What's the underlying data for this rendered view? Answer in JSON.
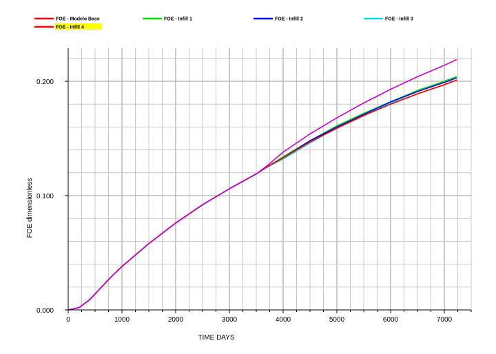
{
  "chart_data": {
    "type": "line",
    "title": "",
    "xlabel": "TIME  DAYS",
    "ylabel": "FOE  dimensionless",
    "xlim": [
      0,
      7500
    ],
    "ylim": [
      0,
      0.2
    ],
    "xticks": [
      0,
      1000,
      2000,
      3000,
      4000,
      5000,
      6000,
      7000
    ],
    "xtick_labels": [
      "0",
      "1000",
      "2000",
      "3000",
      "4000",
      "5000",
      "6000",
      "7000"
    ],
    "yticks": [
      0,
      0.1,
      0.2
    ],
    "ytick_labels": [
      "0.000",
      "0.100",
      "0.200"
    ],
    "grid": true,
    "legend_position": "top",
    "series": [
      {
        "name": "FOE - Modelo Base",
        "color": "#ff0000",
        "x": [
          0,
          200,
          400,
          600,
          800,
          1000,
          1500,
          2000,
          2500,
          3000,
          3500,
          3700,
          4000,
          4500,
          5000,
          5500,
          6000,
          6500,
          7000,
          7230
        ],
        "y": [
          0.0,
          0.002,
          0.009,
          0.019,
          0.029,
          0.038,
          0.058,
          0.076,
          0.092,
          0.106,
          0.119,
          0.125,
          0.133,
          0.147,
          0.159,
          0.17,
          0.18,
          0.189,
          0.197,
          0.201
        ]
      },
      {
        "name": "FOE - Infill 1",
        "color": "#00e000",
        "x": [
          0,
          200,
          400,
          600,
          800,
          1000,
          1500,
          2000,
          2500,
          3000,
          3500,
          3700,
          4000,
          4500,
          5000,
          5500,
          6000,
          6500,
          7000,
          7230
        ],
        "y": [
          0.0,
          0.002,
          0.009,
          0.019,
          0.029,
          0.038,
          0.058,
          0.076,
          0.092,
          0.106,
          0.119,
          0.125,
          0.134,
          0.148,
          0.161,
          0.172,
          0.182,
          0.192,
          0.2,
          0.204
        ]
      },
      {
        "name": "FOE - Infill 2",
        "color": "#0000ff",
        "x": [
          0,
          200,
          400,
          600,
          800,
          1000,
          1500,
          2000,
          2500,
          3000,
          3500,
          3700,
          4000,
          4500,
          5000,
          5500,
          6000,
          6500,
          7000,
          7230
        ],
        "y": [
          0.0,
          0.002,
          0.009,
          0.019,
          0.029,
          0.038,
          0.058,
          0.076,
          0.092,
          0.106,
          0.119,
          0.125,
          0.133,
          0.148,
          0.16,
          0.171,
          0.182,
          0.191,
          0.199,
          0.203
        ]
      },
      {
        "name": "FOE - Infill 3",
        "color": "#00e0e0",
        "x": [
          0,
          200,
          400,
          600,
          800,
          1000,
          1500,
          2000,
          2500,
          3000,
          3500,
          3700,
          4000,
          4500,
          5000,
          5500,
          6000,
          6500,
          7000,
          7230
        ],
        "y": [
          0.0,
          0.002,
          0.009,
          0.019,
          0.029,
          0.038,
          0.058,
          0.076,
          0.092,
          0.106,
          0.119,
          0.125,
          0.132,
          0.146,
          0.159,
          0.17,
          0.181,
          0.191,
          0.2,
          0.204
        ]
      },
      {
        "name": "FOE - Infill 4",
        "color": "#ff0000",
        "x": [
          0,
          200,
          400,
          600,
          800,
          1000,
          1500,
          2000,
          2500,
          3000,
          3500,
          3700,
          4000,
          4500,
          5000,
          5500,
          6000,
          6500,
          7000,
          7230
        ],
        "y": [
          0.0,
          0.002,
          0.009,
          0.019,
          0.029,
          0.038,
          0.058,
          0.076,
          0.092,
          0.106,
          0.119,
          0.125,
          0.133,
          0.147,
          0.159,
          0.17,
          0.18,
          0.189,
          0.197,
          0.201
        ]
      },
      {
        "name": "",
        "color": "#cc00cc",
        "x": [
          0,
          200,
          400,
          600,
          800,
          1000,
          1500,
          2000,
          2500,
          3000,
          3500,
          3700,
          4000,
          4500,
          5000,
          5500,
          6000,
          6500,
          7000,
          7230
        ],
        "y": [
          0.0,
          0.002,
          0.009,
          0.019,
          0.029,
          0.038,
          0.058,
          0.076,
          0.092,
          0.106,
          0.119,
          0.126,
          0.138,
          0.154,
          0.168,
          0.181,
          0.193,
          0.204,
          0.214,
          0.219
        ]
      }
    ],
    "legend": [
      {
        "label": "FOE - Modelo Base",
        "color": "#ff0000",
        "highlight": ""
      },
      {
        "label": "FOE - Infill 1",
        "color": "#00e000",
        "highlight": ""
      },
      {
        "label": "FOE - Infill 2",
        "color": "#0000ff",
        "highlight": ""
      },
      {
        "label": "FOE - Infill 3",
        "color": "#00e0e0",
        "highlight": ""
      },
      {
        "label": "FOE - Infill 4",
        "color": "#ff0000",
        "highlight": "#ffff00"
      }
    ]
  }
}
